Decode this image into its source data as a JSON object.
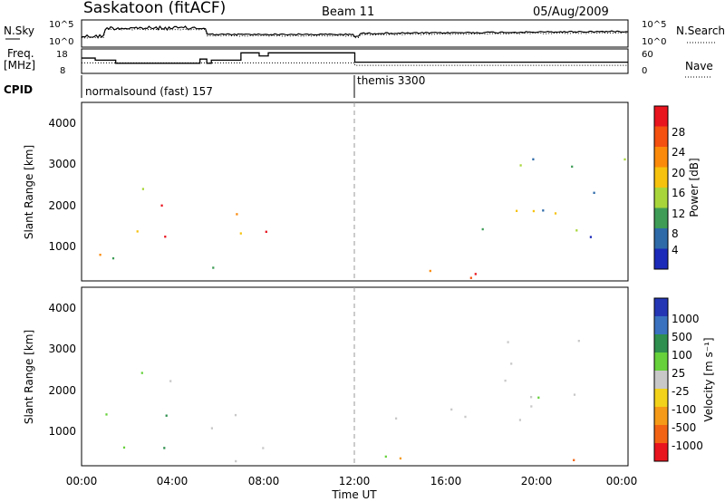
{
  "header": {
    "station": "Saskatoon (fitACF)",
    "beam": "Beam 11",
    "date": "05/Aug/2009"
  },
  "summary_panel": {
    "nsky_label": "N.Sky",
    "nsky_ticks": [
      "10^5",
      "10^0"
    ],
    "nsearch_label": "N.Search",
    "nsearch_ticks": [
      "10^5",
      "10^0"
    ],
    "freq_label_line1": "Freq.",
    "freq_label_line2": "[MHz]",
    "freq_ticks": [
      "18",
      "8"
    ],
    "nave_label": "Nave",
    "nave_ticks": [
      "60",
      "0"
    ],
    "cpid_label": "CPID",
    "cpid_segments": [
      {
        "text": "normalsound (fast) 157",
        "start_hour": 0
      },
      {
        "text": "themis 3300",
        "start_hour": 12
      }
    ]
  },
  "axes": {
    "y_label": "Slant Range [km]",
    "y_ticks": [
      "4000",
      "3000",
      "2000",
      "1000"
    ],
    "x_ticks": [
      "00:00",
      "04:00",
      "08:00",
      "12:00",
      "16:00",
      "20:00",
      "00:00"
    ],
    "x_label": "Time UT"
  },
  "colorbars": {
    "power": {
      "label": "Power [dB]",
      "ticks": [
        "28",
        "24",
        "20",
        "16",
        "12",
        "8",
        "4"
      ],
      "colors": [
        "#e8141e",
        "#f45010",
        "#fb8a0a",
        "#f6c20e",
        "#a8d63a",
        "#3e9c56",
        "#2e6aa8",
        "#1b2ab8"
      ]
    },
    "velocity": {
      "label": "Velocity [m s⁻¹]",
      "ticks": [
        "1000",
        "500",
        "100",
        "25",
        "-25",
        "-100",
        "-500",
        "-1000"
      ],
      "colors": [
        "#2436b4",
        "#3a72c0",
        "#2e8f4e",
        "#66d13a",
        "#c8c8c8",
        "#f2d21a",
        "#f59a18",
        "#f26414",
        "#e8141e"
      ]
    }
  },
  "chart_data": {
    "type": "heatmap",
    "title": "Saskatoon (fitACF) Beam 11 05/Aug/2009",
    "xlabel": "Time UT",
    "ylabel": "Slant Range [km]",
    "xlim_hours": [
      0,
      24
    ],
    "ylim_km": [
      180,
      4600
    ],
    "summary_lines": {
      "frequency_mhz": [
        {
          "t0": 0.0,
          "t1": 0.6,
          "v": 14.5
        },
        {
          "t0": 0.6,
          "t1": 1.5,
          "v": 13.5
        },
        {
          "t0": 1.5,
          "t1": 5.2,
          "v": 12.0
        },
        {
          "t0": 5.2,
          "t1": 5.5,
          "v": 14.0
        },
        {
          "t0": 5.5,
          "t1": 5.7,
          "v": 12.0
        },
        {
          "t0": 5.7,
          "t1": 7.0,
          "v": 13.5
        },
        {
          "t0": 7.0,
          "t1": 7.8,
          "v": 17.0
        },
        {
          "t0": 7.8,
          "t1": 8.2,
          "v": 15.5
        },
        {
          "t0": 8.2,
          "t1": 12.0,
          "v": 17.0
        },
        {
          "t0": 12.0,
          "t1": 24.0,
          "v": 12.5
        }
      ],
      "nave": [
        {
          "t0": 0.0,
          "t1": 12.0,
          "v": 25
        },
        {
          "t0": 12.0,
          "t1": 24.0,
          "v": 18
        }
      ]
    },
    "scatter_regions": [
      {
        "t0": 0.0,
        "t1": 3.8,
        "r0": 300,
        "r1": 1900,
        "power": "high",
        "velocity": "positive"
      },
      {
        "t0": 1.5,
        "t1": 4.2,
        "r0": 1500,
        "r1": 2600,
        "power": "high",
        "velocity": "low"
      },
      {
        "t0": 4.5,
        "t1": 7.0,
        "r0": 300,
        "r1": 2000,
        "power": "mixed",
        "velocity": "low"
      },
      {
        "t0": 7.6,
        "t1": 8.2,
        "r0": 300,
        "r1": 1800,
        "power": "mixed",
        "velocity": "low"
      },
      {
        "t0": 12.0,
        "t1": 24.0,
        "r0": 250,
        "r1": 600,
        "power": "high",
        "velocity": "mixed"
      },
      {
        "t0": 13.5,
        "t1": 24.0,
        "r0": 1200,
        "r1": 2000,
        "power": "medium",
        "velocity": "low"
      },
      {
        "t0": 18.5,
        "t1": 24.0,
        "r0": 1800,
        "r1": 3400,
        "power": "medium",
        "velocity": "low"
      }
    ]
  }
}
